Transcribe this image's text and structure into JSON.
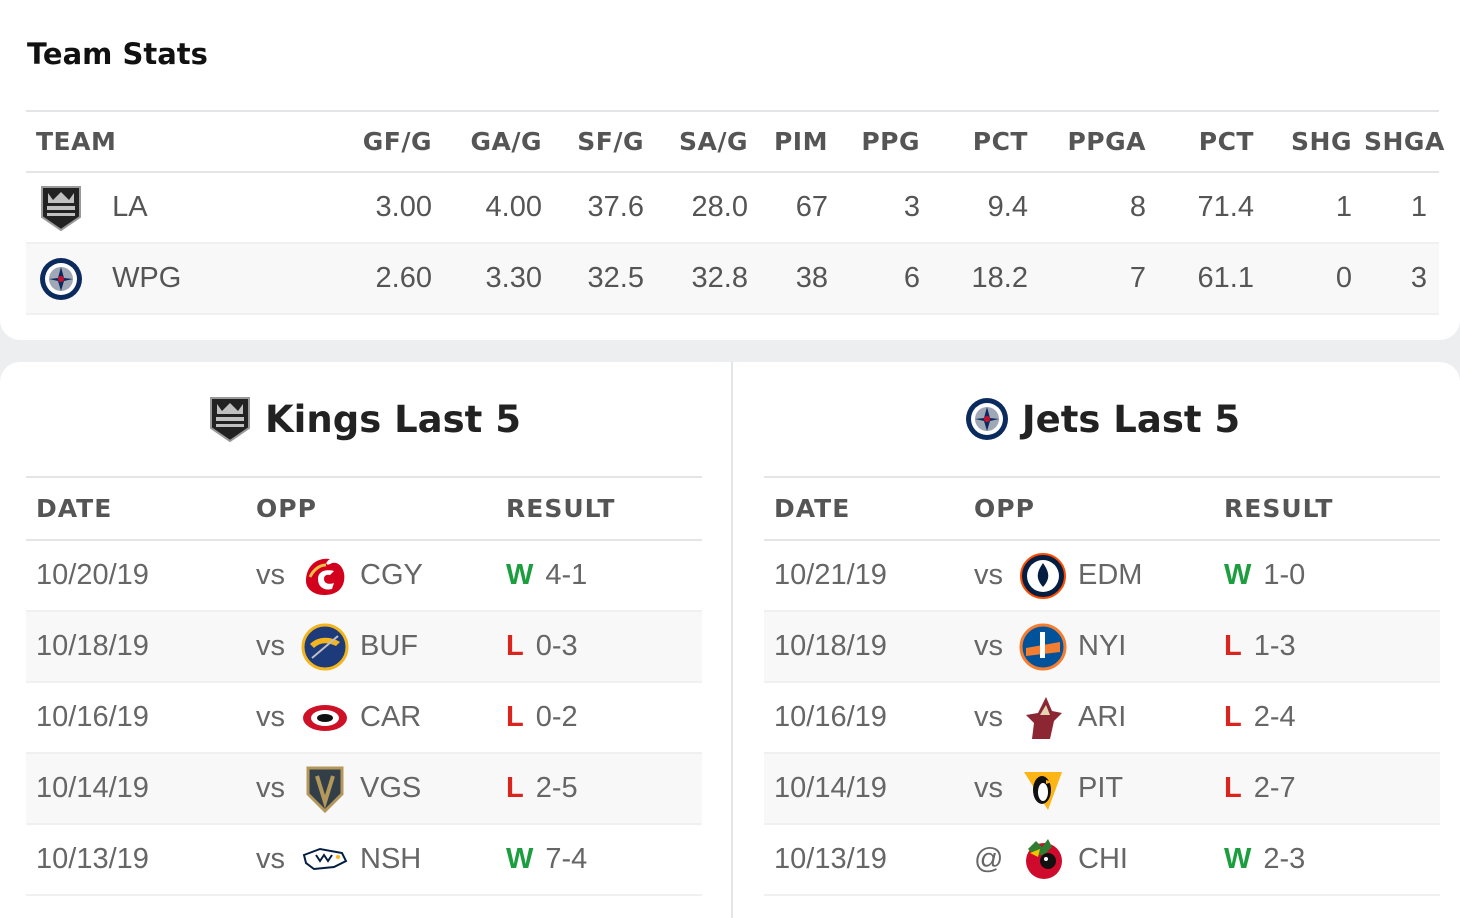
{
  "team_stats": {
    "title": "Team Stats",
    "columns": [
      "TEAM",
      "GF/G",
      "GA/G",
      "SF/G",
      "SA/G",
      "PIM",
      "PPG",
      "PCT",
      "PPGA",
      "PCT",
      "SHG",
      "SHGA"
    ],
    "rows": [
      {
        "logo": "kings-logo-icon",
        "team": "LA",
        "gfg": "3.00",
        "gag": "4.00",
        "sfg": "37.6",
        "sag": "28.0",
        "pim": "67",
        "ppg": "3",
        "pct": "9.4",
        "ppga": "8",
        "pct2": "71.4",
        "shg": "1",
        "shga": "1"
      },
      {
        "logo": "jets-logo-icon",
        "team": "WPG",
        "gfg": "2.60",
        "gag": "3.30",
        "sfg": "32.5",
        "sag": "32.8",
        "pim": "38",
        "ppg": "6",
        "pct": "18.2",
        "ppga": "7",
        "pct2": "61.1",
        "shg": "0",
        "shga": "3"
      }
    ]
  },
  "kings_last5": {
    "title": "Kings Last 5",
    "columns": [
      "DATE",
      "OPP",
      "RESULT"
    ],
    "games": [
      {
        "date": "10/20/19",
        "loc": "vs",
        "opp": "CGY",
        "opp_logo": "flames-logo-icon",
        "result": "W",
        "score": "4-1"
      },
      {
        "date": "10/18/19",
        "loc": "vs",
        "opp": "BUF",
        "opp_logo": "sabres-logo-icon",
        "result": "L",
        "score": "0-3"
      },
      {
        "date": "10/16/19",
        "loc": "vs",
        "opp": "CAR",
        "opp_logo": "hurricanes-logo-icon",
        "result": "L",
        "score": "0-2"
      },
      {
        "date": "10/14/19",
        "loc": "vs",
        "opp": "VGS",
        "opp_logo": "golden-knights-logo-icon",
        "result": "L",
        "score": "2-5"
      },
      {
        "date": "10/13/19",
        "loc": "vs",
        "opp": "NSH",
        "opp_logo": "predators-logo-icon",
        "result": "W",
        "score": "7-4"
      }
    ]
  },
  "jets_last5": {
    "title": "Jets Last 5",
    "columns": [
      "DATE",
      "OPP",
      "RESULT"
    ],
    "games": [
      {
        "date": "10/21/19",
        "loc": "vs",
        "opp": "EDM",
        "opp_logo": "oilers-logo-icon",
        "result": "W",
        "score": "1-0"
      },
      {
        "date": "10/18/19",
        "loc": "vs",
        "opp": "NYI",
        "opp_logo": "islanders-logo-icon",
        "result": "L",
        "score": "1-3"
      },
      {
        "date": "10/16/19",
        "loc": "vs",
        "opp": "ARI",
        "opp_logo": "coyotes-logo-icon",
        "result": "L",
        "score": "2-4"
      },
      {
        "date": "10/14/19",
        "loc": "vs",
        "opp": "PIT",
        "opp_logo": "penguins-logo-icon",
        "result": "L",
        "score": "2-7"
      },
      {
        "date": "10/13/19",
        "loc": "@",
        "opp": "CHI",
        "opp_logo": "blackhawks-logo-icon",
        "result": "W",
        "score": "2-3"
      }
    ]
  },
  "colors": {
    "win": "#1c9e3f",
    "loss": "#d9251d"
  }
}
